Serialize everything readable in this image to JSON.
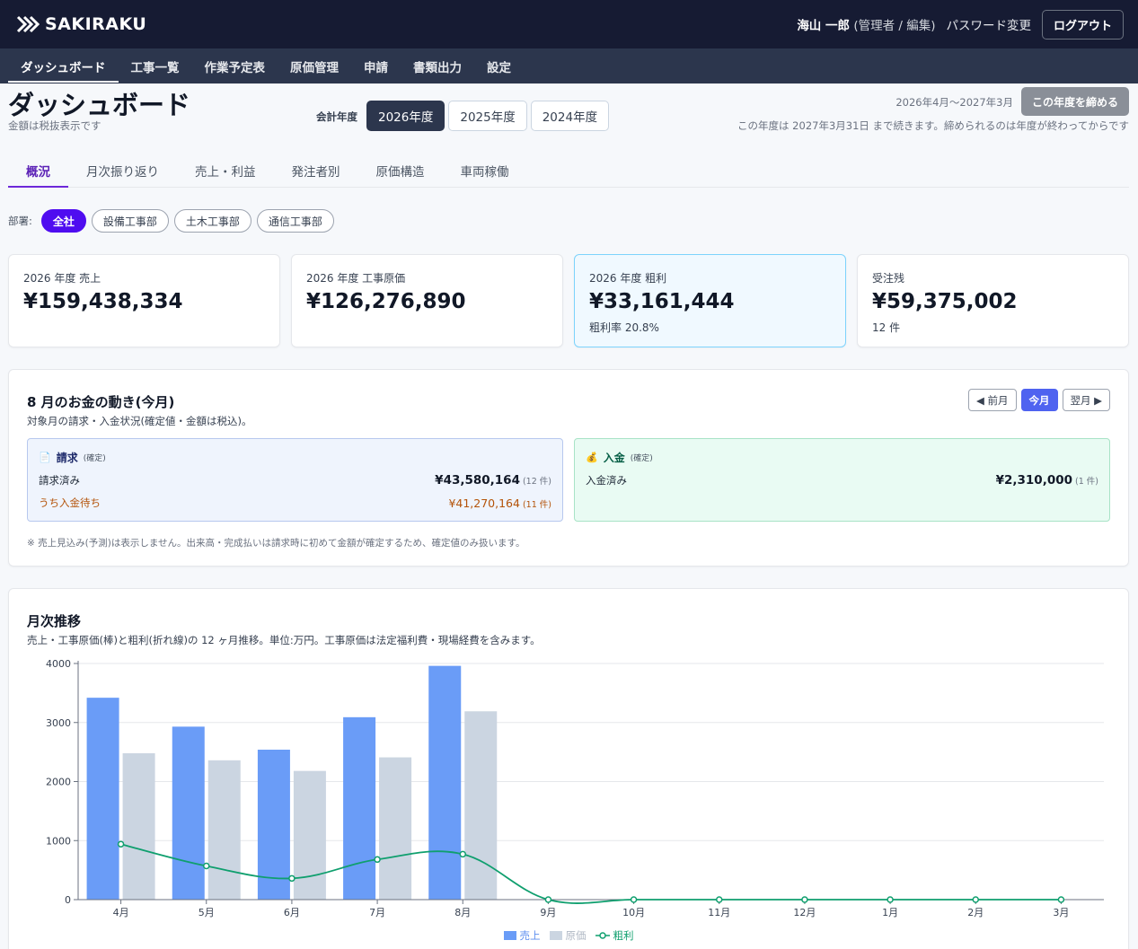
{
  "header": {
    "logo_text": "SAKIRAKU",
    "user_name": "海山 一郎",
    "user_role": "(管理者 / 編集)",
    "password_change": "パスワード変更",
    "logout": "ログアウト"
  },
  "nav": {
    "items": [
      {
        "label": "ダッシュボード"
      },
      {
        "label": "工事一覧"
      },
      {
        "label": "作業予定表"
      },
      {
        "label": "原価管理"
      },
      {
        "label": "申請"
      },
      {
        "label": "書類出力"
      },
      {
        "label": "設定"
      }
    ]
  },
  "page": {
    "title": "ダッシュボード",
    "subtitle": "金額は税抜表示です",
    "fy_label": "会計年度",
    "fy_options": [
      "2026年度",
      "2025年度",
      "2024年度"
    ],
    "period": "2026年4月〜2027年3月",
    "close_year_button": "この年度を締める",
    "close_note": "この年度は 2027年3月31日 まで続きます。締められるのは年度が終わってからです"
  },
  "tabs": [
    "概況",
    "月次振り返り",
    "売上・利益",
    "発注者別",
    "原価構造",
    "車両稼働"
  ],
  "dept": {
    "label": "部署:",
    "options": [
      "全社",
      "設備工事部",
      "土木工事部",
      "通信工事部"
    ]
  },
  "kpis": [
    {
      "label": "2026 年度 売上",
      "value": "¥159,438,334",
      "sub": ""
    },
    {
      "label": "2026 年度 工事原価",
      "value": "¥126,276,890",
      "sub": ""
    },
    {
      "label": "2026 年度 粗利",
      "value": "¥33,161,444",
      "sub": "粗利率 20.8%"
    },
    {
      "label": "受注残",
      "value": "¥59,375,002",
      "sub": "12 件"
    }
  ],
  "money": {
    "title": "8 月のお金の動き(今月)",
    "desc": "対象月の請求・入金状況(確定値・金額は税込)。",
    "prev": "◀ 前月",
    "current": "今月",
    "next": "翌月 ▶",
    "invoice": {
      "title": "請求",
      "tag": "(確定)",
      "icon": "document-icon",
      "billed_label": "請求済み",
      "billed_amount": "¥43,580,164",
      "billed_count": "(12 件)",
      "pending_label": "うち入金待ち",
      "pending_amount": "¥41,270,164",
      "pending_count": "(11 件)"
    },
    "payment": {
      "title": "入金",
      "tag": "(確定)",
      "icon": "money-bag-icon",
      "received_label": "入金済み",
      "received_amount": "¥2,310,000",
      "received_count": "(1 件)"
    },
    "note": "※ 売上見込み(予測)は表示しません。出来高・完成払いは請求時に初めて金額が確定するため、確定値のみ扱います。"
  },
  "trend": {
    "title": "月次推移",
    "desc": "売上・工事原価(棒)と粗利(折れ線)の 12 ヶ月推移。単位:万円。工事原価は法定福利費・現場経費を含みます。"
  },
  "chart_data": {
    "type": "bar",
    "categories": [
      "4月",
      "5月",
      "6月",
      "7月",
      "8月",
      "9月",
      "10月",
      "11月",
      "12月",
      "1月",
      "2月",
      "3月"
    ],
    "series": [
      {
        "name": "売上",
        "kind": "bar",
        "color": "#6a9cf7",
        "values": [
          3420,
          2930,
          2540,
          3090,
          3960,
          0,
          0,
          0,
          0,
          0,
          0,
          0
        ]
      },
      {
        "name": "原価",
        "kind": "bar",
        "color": "#cbd5e1",
        "values": [
          2480,
          2360,
          2180,
          2410,
          3190,
          0,
          0,
          0,
          0,
          0,
          0,
          0
        ]
      },
      {
        "name": "粗利",
        "kind": "line",
        "color": "#0f9f6e",
        "values": [
          940,
          570,
          360,
          680,
          770,
          0,
          0,
          0,
          0,
          0,
          0,
          0
        ]
      }
    ],
    "ylim": [
      0,
      4000
    ],
    "yticks": [
      0,
      1000,
      2000,
      3000,
      4000
    ],
    "grid": true,
    "legend": "bottom"
  },
  "colors": {
    "header_bg": "#161b33",
    "nav_bg": "#2c364d",
    "accent_purple": "#4f0df0",
    "accent_blue": "#4f63f0"
  }
}
